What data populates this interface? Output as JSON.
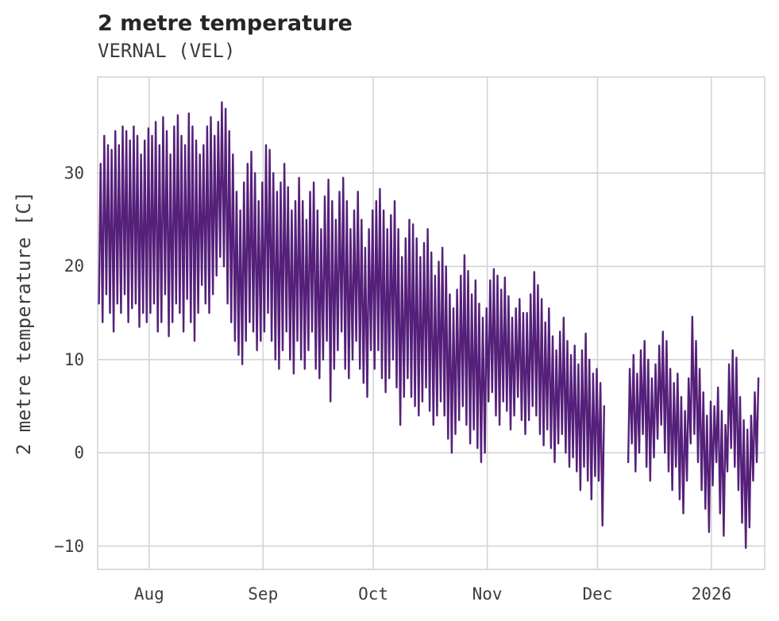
{
  "header": {
    "title": "2 metre temperature",
    "subtitle": "VERNAL (VEL)"
  },
  "chart_data": {
    "type": "line",
    "title": "2 metre temperature",
    "subtitle": "VERNAL (VEL)",
    "xlabel": "",
    "ylabel": "2 metre temperature [C]",
    "legend": "none",
    "grid": true,
    "grid_color": "#d4d4d4",
    "line_color": "#55207a",
    "background_color": "#ffffff",
    "ylim": [
      -12.5,
      40.3
    ],
    "y_ticks": [
      30,
      20,
      10,
      0,
      -10
    ],
    "y_tick_labels": [
      "30",
      "20",
      "10",
      "0",
      "−10"
    ],
    "x_tick_labels": [
      "Aug",
      "Sep",
      "Oct",
      "Nov",
      "Dec",
      "2026"
    ],
    "x_tick_days": [
      14,
      45,
      75,
      106,
      136,
      167
    ],
    "x_domain_days": [
      0,
      181.5
    ],
    "x_domain_note": "day 0 = first plotted day (mid-July); ticks mark month starts; 2026 = Jan 1",
    "data_gap_days": [
      138,
      143
    ],
    "daily_min": [
      16,
      14,
      17,
      15,
      13,
      16,
      15,
      17,
      14,
      15.5,
      16,
      13.5,
      15,
      14,
      15,
      16,
      13,
      14,
      17,
      12.5,
      14,
      16,
      15,
      13,
      16.5,
      14,
      12,
      15,
      18,
      16,
      15,
      17,
      19,
      21,
      20,
      16,
      14,
      12,
      10.5,
      9.5,
      12,
      14,
      13,
      11,
      12,
      13,
      15,
      12,
      10,
      9,
      11,
      13,
      10,
      8.5,
      12,
      10,
      9,
      11,
      13,
      9,
      8,
      10,
      12,
      5.5,
      9,
      11,
      13,
      9,
      8,
      10,
      12,
      9,
      7.5,
      6,
      11,
      9,
      11,
      8,
      6.5,
      8,
      10,
      7,
      3,
      6,
      8,
      6,
      5,
      4,
      5.5,
      7,
      4.5,
      3,
      4,
      5.5,
      4,
      1.5,
      0,
      2,
      3.5,
      5,
      3,
      1,
      2.5,
      0.5,
      -1,
      0,
      5.5,
      6.5,
      4,
      3,
      5.5,
      4.5,
      2.5,
      4,
      6,
      3.5,
      2,
      3.5,
      5,
      4,
      2,
      0.8,
      2.5,
      0.5,
      -1,
      1,
      2,
      0,
      -1.5,
      -0.5,
      -2,
      -4,
      -1.5,
      -3,
      -5,
      -2.5,
      -3,
      -7.8,
      null,
      null,
      null,
      null,
      null,
      null,
      -1,
      1,
      -2,
      0,
      2,
      -1.5,
      -3,
      -0.5,
      1.5,
      3,
      0,
      -2,
      -4,
      -1.5,
      -5,
      -6.5,
      -3,
      1,
      2,
      -1,
      -4,
      -6,
      -8.5,
      -3.5,
      -1,
      -6.5,
      -8.9,
      -2,
      0.5,
      -1.5,
      -4,
      -7.5,
      -10.2,
      -8,
      -3,
      -1
    ],
    "daily_max": [
      31,
      34,
      33,
      32.5,
      34.5,
      33,
      35,
      34.5,
      33.5,
      35,
      34,
      32,
      33.5,
      34.8,
      34,
      35.5,
      33,
      36,
      34.5,
      32,
      35,
      36.2,
      34,
      33,
      36.4,
      35,
      33.5,
      32,
      33,
      35,
      36,
      34,
      35.5,
      37.6,
      36.9,
      34.5,
      32,
      28,
      26,
      29,
      31,
      32.3,
      30,
      27,
      29,
      33,
      32.5,
      30,
      28,
      29,
      31,
      28.5,
      26,
      27,
      29.5,
      27,
      25,
      28,
      29,
      26,
      24,
      27.5,
      29.3,
      27,
      25,
      28,
      29.5,
      27,
      24,
      26,
      28,
      25,
      22,
      24,
      26,
      27,
      28.3,
      26,
      24,
      25.5,
      27,
      24,
      21,
      23,
      25,
      24.5,
      23,
      21,
      22.5,
      24,
      21.5,
      19,
      20.5,
      22,
      20,
      17,
      15.5,
      17.5,
      19,
      21.2,
      19.5,
      17,
      18.5,
      16,
      14.5,
      15.5,
      18.5,
      19.7,
      19,
      17.5,
      18.8,
      16.8,
      14.5,
      15.5,
      16.5,
      15,
      15,
      17,
      19.4,
      18,
      16.5,
      14,
      15.5,
      12.5,
      11,
      13,
      14.5,
      12,
      10.5,
      11.5,
      9.5,
      11,
      12.8,
      10,
      8.5,
      9,
      7.5,
      5,
      null,
      null,
      null,
      null,
      null,
      null,
      9,
      10.5,
      8.5,
      11,
      12,
      10,
      8,
      9.5,
      11.5,
      13,
      12,
      9,
      7.5,
      8.5,
      6,
      4.5,
      8,
      14.6,
      12,
      9,
      6.5,
      4,
      5.5,
      5,
      7,
      4.5,
      3,
      9.5,
      11,
      10.2,
      6,
      3.5,
      2.5,
      4,
      6.5,
      8
    ]
  }
}
